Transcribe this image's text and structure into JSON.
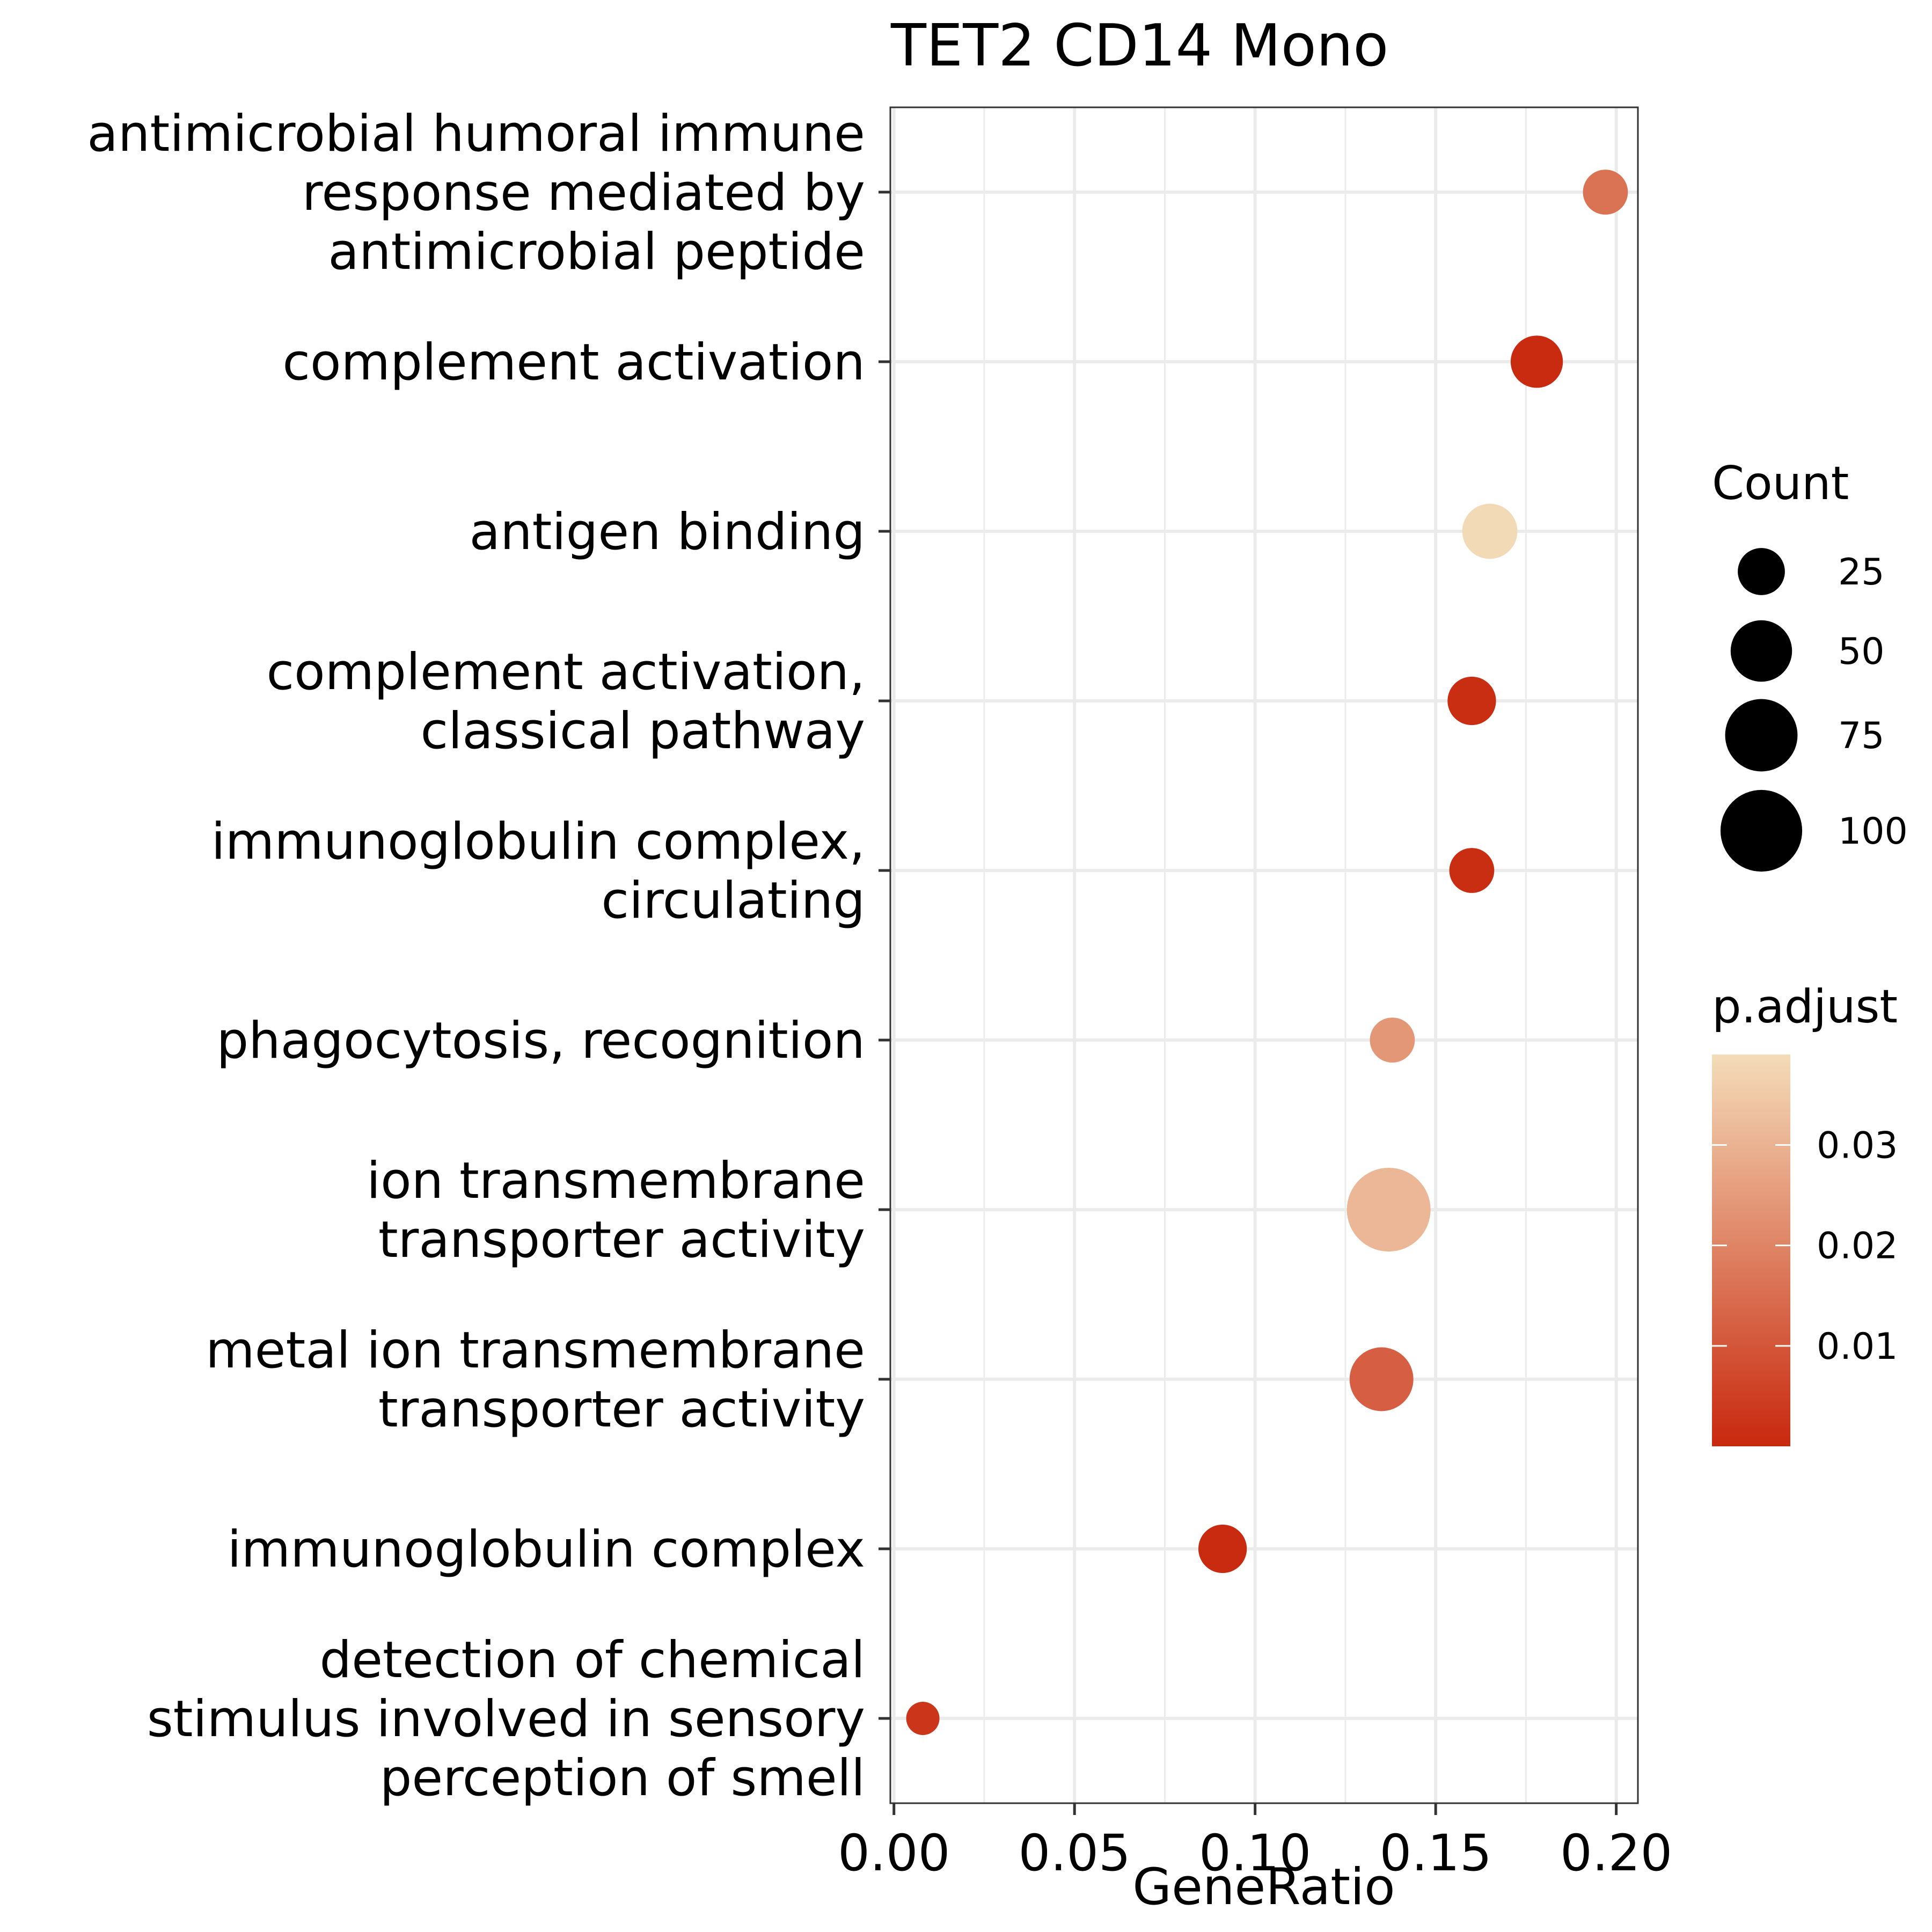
{
  "chart_data": {
    "type": "scatter",
    "title": "TET2 CD14 Mono",
    "xlabel": "GeneRatio",
    "ylabel": "",
    "xlim": [
      -0.001,
      0.206
    ],
    "x_ticks": [
      0.0,
      0.05,
      0.1,
      0.15,
      0.2
    ],
    "x_tick_labels": [
      "0.00",
      "0.05",
      "0.10",
      "0.15",
      "0.20"
    ],
    "grid": true,
    "points": [
      {
        "term": [
          "antimicrobial humoral immune",
          "response mediated by",
          "antimicrobial peptide"
        ],
        "gene_ratio": 0.197,
        "count": 22,
        "p_adjust": 0.016
      },
      {
        "term": [
          "complement activation"
        ],
        "gene_ratio": 0.178,
        "count": 33,
        "p_adjust": 0.0006
      },
      {
        "term": [
          "antigen binding"
        ],
        "gene_ratio": 0.165,
        "count": 38,
        "p_adjust": 0.0385
      },
      {
        "term": [
          "complement activation,",
          "classical pathway"
        ],
        "gene_ratio": 0.16,
        "count": 27,
        "p_adjust": 0.001
      },
      {
        "term": [
          "immunoglobulin complex,",
          "circulating"
        ],
        "gene_ratio": 0.16,
        "count": 22,
        "p_adjust": 0.001
      },
      {
        "term": [
          "phagocytosis, recognition"
        ],
        "gene_ratio": 0.138,
        "count": 22,
        "p_adjust": 0.024
      },
      {
        "term": [
          "ion transmembrane",
          "transporter activity"
        ],
        "gene_ratio": 0.137,
        "count": 106,
        "p_adjust": 0.031
      },
      {
        "term": [
          "metal ion transmembrane",
          "transporter activity"
        ],
        "gene_ratio": 0.135,
        "count": 55,
        "p_adjust": 0.012
      },
      {
        "term": [
          "immunoglobulin complex"
        ],
        "gene_ratio": 0.091,
        "count": 27,
        "p_adjust": 0.0007
      },
      {
        "term": [
          "detection of chemical",
          "stimulus involved in sensory",
          "perception of smell"
        ],
        "gene_ratio": 0.008,
        "count": 9,
        "p_adjust": 0.003
      }
    ],
    "legend_size": {
      "title": "Count",
      "breaks": [
        25,
        50,
        75,
        100
      ],
      "labels": [
        "25",
        "50",
        "75",
        "100"
      ]
    },
    "legend_color": {
      "title": "p.adjust",
      "range": [
        0.0,
        0.039
      ],
      "breaks": [
        0.01,
        0.02,
        0.03
      ],
      "labels": [
        "0.01",
        "0.02",
        "0.03"
      ],
      "low_color": "#C8280E",
      "high_color": "#F4DCB9"
    },
    "legend_position": "right"
  }
}
